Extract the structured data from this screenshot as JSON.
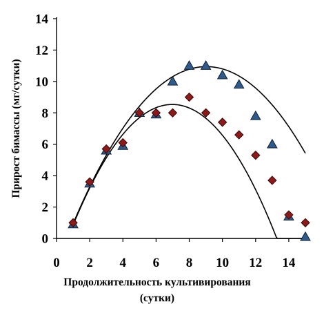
{
  "chart_data": {
    "type": "scatter",
    "title": "",
    "xlabel_line1": "Продолжительность культивирования",
    "xlabel_line2": "(сутки)",
    "ylabel": "Прирост бимассы (мг/сутки)",
    "xlim": [
      0,
      15
    ],
    "ylim": [
      0,
      14
    ],
    "xticks": [
      0,
      2,
      4,
      6,
      8,
      10,
      12,
      14
    ],
    "yticks": [
      0,
      2,
      4,
      6,
      8,
      10,
      12,
      14
    ],
    "grid": false,
    "legend": "none",
    "series": [
      {
        "marker": "triangle",
        "color": "#2f5a8a",
        "edge_color": "#0d1f33",
        "x": [
          1,
          2,
          3,
          4,
          5,
          6,
          7,
          8,
          9,
          10,
          11,
          12,
          13,
          14,
          15
        ],
        "y": [
          0.9,
          3.5,
          5.6,
          5.9,
          8.0,
          7.9,
          10.0,
          11.0,
          11.0,
          10.4,
          9.8,
          7.8,
          6.0,
          1.4,
          0.1
        ],
        "trend_curve": {
          "kind": "polynomial-2",
          "coefficients": [
            -1.7,
            2.8,
            -0.155
          ]
        }
      },
      {
        "marker": "diamond",
        "color": "#8b1a1a",
        "edge_color": "#3d0606",
        "x": [
          1,
          2,
          3,
          4,
          5,
          6,
          7,
          8,
          9,
          10,
          11,
          12,
          13,
          14,
          15
        ],
        "y": [
          1.0,
          3.6,
          5.7,
          6.1,
          8.0,
          8.0,
          8.0,
          9.0,
          8.0,
          7.4,
          6.6,
          5.3,
          3.7,
          1.5,
          1.0
        ],
        "trend_curve": {
          "kind": "polynomial-2",
          "coefficients": [
            -1.93,
            3.0,
            -0.215
          ]
        }
      }
    ]
  }
}
